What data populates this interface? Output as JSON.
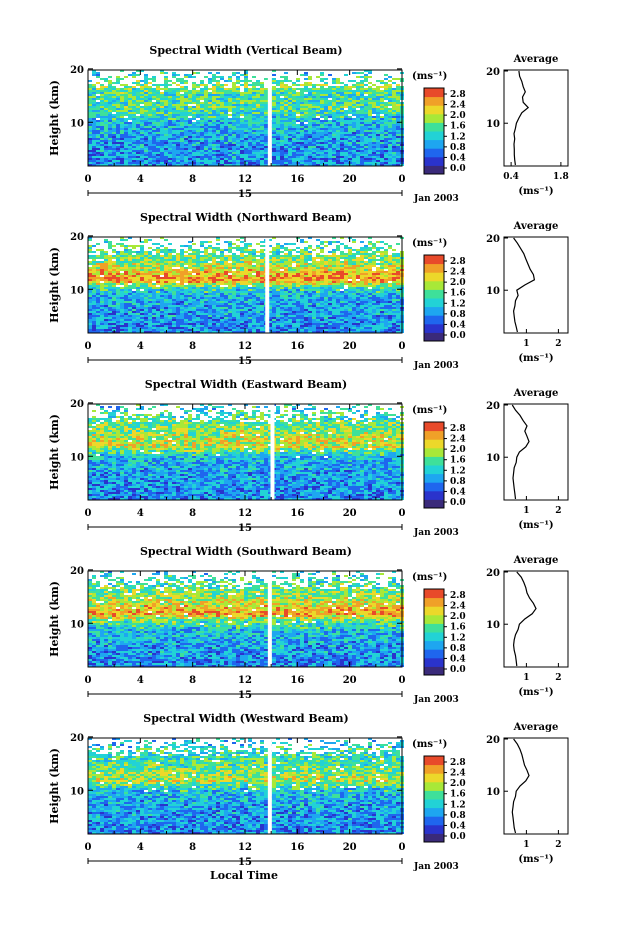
{
  "figure": {
    "xaxis_title": "Local Time"
  },
  "shared": {
    "x_ticks": [
      "0",
      "4",
      "8",
      "12",
      "16",
      "20",
      "0"
    ],
    "date_day": "15",
    "date_label": "Jan 2003",
    "y_ticks": [
      "20",
      "10"
    ],
    "ylabel": "Height (km)",
    "colorbar_unit": "(ms⁻¹)",
    "colorbar_ticks": [
      "2.8",
      "2.4",
      "2.0",
      "1.6",
      "1.2",
      "0.8",
      "0.4",
      "0.0"
    ],
    "colorbar_colors": [
      "#3a2a7a",
      "#2a33cc",
      "#1f66ee",
      "#1ea6f0",
      "#22d2d6",
      "#3ee09a",
      "#a8e838",
      "#ecd82a",
      "#f0a028",
      "#e84a2a"
    ],
    "avg_title": "Average",
    "avg_xlabel": "(ms⁻¹)",
    "avg_y_ticks": [
      "20",
      "10"
    ],
    "panel_bg": "#2c50dc"
  },
  "chart_data": [
    {
      "type": "heatmap",
      "title": "Spectral Width (Vertical Beam)",
      "x_range": [
        0,
        24
      ],
      "y_range": [
        0,
        20
      ],
      "c_range": [
        0.0,
        2.8
      ],
      "data_gap_hour": 13.9,
      "intensity_profile": [
        [
          2,
          0.32
        ],
        [
          6,
          0.34
        ],
        [
          9,
          0.38
        ],
        [
          11,
          0.45
        ],
        [
          13,
          0.55
        ],
        [
          15,
          0.5
        ],
        [
          17,
          0.6
        ],
        [
          19,
          0.45
        ]
      ],
      "average": {
        "xlabel_ticks": [
          "0.4",
          "1.8"
        ],
        "x_range": [
          0.2,
          2.0
        ],
        "height": [
          2,
          3,
          4,
          5,
          6,
          7,
          8,
          9,
          10,
          11,
          12,
          13,
          14,
          15,
          16,
          17,
          18,
          19,
          20
        ],
        "value": [
          0.52,
          0.5,
          0.49,
          0.49,
          0.48,
          0.5,
          0.48,
          0.52,
          0.55,
          0.62,
          0.7,
          0.88,
          0.74,
          0.72,
          0.8,
          0.74,
          0.7,
          0.64,
          0.62
        ]
      }
    },
    {
      "type": "heatmap",
      "title": "Spectral Width (Northward Beam)",
      "x_range": [
        0,
        24
      ],
      "y_range": [
        0,
        20
      ],
      "c_range": [
        0.0,
        2.8
      ],
      "data_gap_hour": 13.7,
      "intensity_profile": [
        [
          2,
          0.3
        ],
        [
          6,
          0.35
        ],
        [
          9,
          0.38
        ],
        [
          10.5,
          0.5
        ],
        [
          12,
          0.9
        ],
        [
          13,
          0.8
        ],
        [
          15,
          0.65
        ],
        [
          17,
          0.55
        ],
        [
          18.5,
          0.5
        ]
      ],
      "average": {
        "xlabel_ticks": [
          "1",
          "2"
        ],
        "x_range": [
          0.3,
          2.3
        ],
        "height": [
          2,
          3,
          4,
          5,
          6,
          7,
          8,
          9,
          10,
          11,
          12,
          13,
          14,
          15,
          16,
          17,
          18,
          19,
          20
        ],
        "value": [
          0.72,
          0.68,
          0.64,
          0.62,
          0.6,
          0.64,
          0.66,
          0.74,
          0.7,
          0.95,
          1.25,
          1.22,
          1.12,
          1.05,
          0.98,
          0.92,
          0.82,
          0.72,
          0.6
        ]
      }
    },
    {
      "type": "heatmap",
      "title": "Spectral Width (Eastward Beam)",
      "x_range": [
        0,
        24
      ],
      "y_range": [
        0,
        20
      ],
      "c_range": [
        0.0,
        2.8
      ],
      "data_gap_hour": 14.1,
      "intensity_profile": [
        [
          2,
          0.3
        ],
        [
          6,
          0.33
        ],
        [
          9,
          0.38
        ],
        [
          10.5,
          0.45
        ],
        [
          12,
          0.72
        ],
        [
          13,
          0.7
        ],
        [
          15,
          0.62
        ],
        [
          17,
          0.55
        ],
        [
          19,
          0.45
        ]
      ],
      "average": {
        "xlabel_ticks": [
          "1",
          "2"
        ],
        "x_range": [
          0.3,
          2.3
        ],
        "height": [
          2,
          3,
          4,
          5,
          6,
          7,
          8,
          9,
          10,
          11,
          12,
          13,
          14,
          15,
          16,
          17,
          18,
          19,
          20
        ],
        "value": [
          0.66,
          0.64,
          0.62,
          0.6,
          0.58,
          0.6,
          0.62,
          0.68,
          0.7,
          0.78,
          0.98,
          1.08,
          1.02,
          0.95,
          1.02,
          0.9,
          0.8,
          0.66,
          0.56
        ]
      }
    },
    {
      "type": "heatmap",
      "title": "Spectral Width (Southward Beam)",
      "x_range": [
        0,
        24
      ],
      "y_range": [
        0,
        20
      ],
      "c_range": [
        0.0,
        2.8
      ],
      "data_gap_hour": 13.9,
      "intensity_profile": [
        [
          2,
          0.3
        ],
        [
          6,
          0.35
        ],
        [
          9,
          0.42
        ],
        [
          10.5,
          0.55
        ],
        [
          12,
          0.85
        ],
        [
          13,
          0.78
        ],
        [
          15,
          0.65
        ],
        [
          17,
          0.55
        ],
        [
          19,
          0.45
        ]
      ],
      "average": {
        "xlabel_ticks": [
          "1",
          "2"
        ],
        "x_range": [
          0.3,
          2.3
        ],
        "height": [
          2,
          3,
          4,
          5,
          6,
          7,
          8,
          9,
          10,
          11,
          12,
          13,
          14,
          15,
          16,
          17,
          18,
          19,
          20
        ],
        "value": [
          0.7,
          0.68,
          0.66,
          0.62,
          0.6,
          0.62,
          0.66,
          0.74,
          0.78,
          0.95,
          1.18,
          1.3,
          1.22,
          1.1,
          1.02,
          0.98,
          0.92,
          0.84,
          0.7
        ]
      }
    },
    {
      "type": "heatmap",
      "title": "Spectral Width (Westward Beam)",
      "x_range": [
        0,
        24
      ],
      "y_range": [
        0,
        20
      ],
      "c_range": [
        0.0,
        2.8
      ],
      "data_gap_hour": 13.9,
      "intensity_profile": [
        [
          2,
          0.3
        ],
        [
          6,
          0.34
        ],
        [
          9,
          0.38
        ],
        [
          10.5,
          0.45
        ],
        [
          12,
          0.68
        ],
        [
          13,
          0.62
        ],
        [
          15,
          0.55
        ],
        [
          17,
          0.5
        ],
        [
          19,
          0.42
        ]
      ],
      "average": {
        "xlabel_ticks": [
          "1",
          "2"
        ],
        "x_range": [
          0.3,
          2.3
        ],
        "height": [
          2,
          3,
          4,
          5,
          6,
          7,
          8,
          9,
          10,
          11,
          12,
          13,
          14,
          15,
          16,
          17,
          18,
          19,
          20
        ],
        "value": [
          0.66,
          0.62,
          0.6,
          0.58,
          0.56,
          0.58,
          0.6,
          0.66,
          0.68,
          0.8,
          0.98,
          1.08,
          1.02,
          0.94,
          0.9,
          0.86,
          0.8,
          0.72,
          0.6
        ]
      }
    }
  ]
}
